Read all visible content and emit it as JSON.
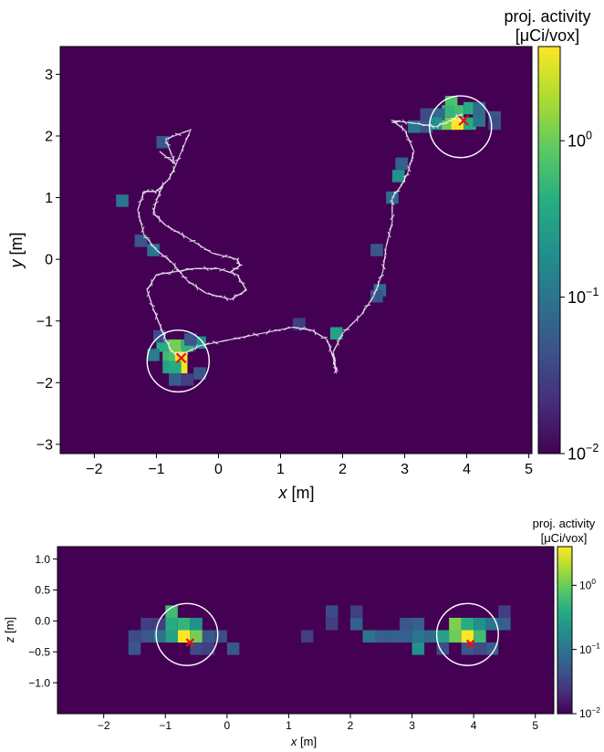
{
  "chart_data": [
    {
      "type": "heatmap",
      "name": "top-xy",
      "xlabel_var": "x",
      "ylabel_var": "y",
      "unit": "[m]",
      "xlim": [
        -2.55,
        5.05
      ],
      "ylim": [
        -3.15,
        3.45
      ],
      "xticks": [
        -2,
        -1,
        0,
        1,
        2,
        3,
        4,
        5
      ],
      "yticks": [
        -3,
        -2,
        -1,
        0,
        1,
        2,
        3
      ],
      "colorbar_label_line1": "proj. activity",
      "colorbar_label_line2": "[μCi/vox]",
      "colorbar_scale": "log",
      "colorbar_range": [
        0.01,
        4
      ],
      "colorbar_ticks": [
        {
          "label": "10",
          "exp": "−2",
          "value": 0.01
        },
        {
          "label": "10",
          "exp": "−1",
          "value": 0.1
        },
        {
          "label": "10",
          "exp": "0",
          "value": 1
        }
      ],
      "background_color": "#440154",
      "pixel_size": 0.2,
      "pixels": [
        [
          -0.8,
          -1.55,
          0.6
        ],
        [
          -0.7,
          -1.55,
          0.7
        ],
        [
          -0.6,
          -1.55,
          4.0
        ],
        [
          -0.6,
          -1.75,
          3.5
        ],
        [
          -0.8,
          -1.75,
          0.3
        ],
        [
          -0.7,
          -1.75,
          0.4
        ],
        [
          -0.9,
          -1.4,
          0.4
        ],
        [
          -0.7,
          -1.4,
          1.1
        ],
        [
          -0.5,
          -1.4,
          0.5
        ],
        [
          -0.3,
          -1.35,
          0.2
        ],
        [
          -0.45,
          -1.3,
          0.05
        ],
        [
          -1.05,
          -1.55,
          0.12
        ],
        [
          -0.95,
          -1.25,
          0.04
        ],
        [
          -0.3,
          -1.85,
          0.05
        ],
        [
          -0.7,
          -1.95,
          0.06
        ],
        [
          -0.5,
          -1.95,
          0.03
        ],
        [
          -1.55,
          0.95,
          0.1
        ],
        [
          -1.25,
          0.3,
          0.05
        ],
        [
          -1.05,
          0.15,
          0.1
        ],
        [
          -0.9,
          1.9,
          0.05
        ],
        [
          1.9,
          -1.2,
          0.3
        ],
        [
          1.3,
          -1.05,
          0.03
        ],
        [
          2.6,
          -0.5,
          0.08
        ],
        [
          2.55,
          -0.6,
          0.05
        ],
        [
          2.55,
          0.15,
          0.05
        ],
        [
          2.8,
          1.0,
          0.08
        ],
        [
          2.9,
          1.35,
          0.2
        ],
        [
          2.95,
          1.55,
          0.06
        ],
        [
          3.85,
          2.2,
          4.0
        ],
        [
          3.65,
          2.2,
          1.1
        ],
        [
          3.85,
          2.4,
          0.6
        ],
        [
          3.75,
          2.55,
          0.7
        ],
        [
          3.7,
          2.4,
          0.5
        ],
        [
          4.05,
          2.2,
          0.4
        ],
        [
          4.05,
          2.45,
          0.4
        ],
        [
          4.2,
          2.45,
          0.08
        ],
        [
          4.2,
          2.25,
          0.1
        ],
        [
          4.45,
          2.3,
          0.05
        ],
        [
          4.45,
          2.2,
          0.04
        ],
        [
          3.55,
          2.35,
          0.08
        ],
        [
          3.35,
          2.15,
          0.05
        ],
        [
          3.15,
          2.15,
          0.1
        ],
        [
          3.35,
          2.35,
          0.04
        ],
        [
          3.5,
          2.2,
          0.2
        ]
      ],
      "sources": [
        {
          "x": -0.6,
          "y": -1.6
        },
        {
          "x": 3.95,
          "y": 2.25
        }
      ],
      "circles": [
        {
          "x": -0.65,
          "y": -1.65,
          "r": 0.5
        },
        {
          "x": 3.9,
          "y": 2.15,
          "r": 0.5
        }
      ],
      "trajectory": [
        [
          -0.95,
          1.75
        ],
        [
          -0.7,
          1.55
        ],
        [
          -0.85,
          1.95
        ],
        [
          -0.45,
          2.1
        ],
        [
          -0.7,
          1.5
        ],
        [
          -0.8,
          1.3
        ],
        [
          -1.0,
          1.1
        ],
        [
          -1.2,
          1.1
        ],
        [
          -1.3,
          0.8
        ],
        [
          -1.2,
          0.4
        ],
        [
          -1.0,
          0.15
        ],
        [
          -0.75,
          -0.05
        ],
        [
          -0.5,
          -0.35
        ],
        [
          -0.2,
          -0.55
        ],
        [
          0.2,
          -0.65
        ],
        [
          0.45,
          -0.5
        ],
        [
          0.3,
          -0.25
        ],
        [
          0.0,
          -0.15
        ],
        [
          -0.4,
          -0.15
        ],
        [
          -0.7,
          -0.2
        ],
        [
          -1.0,
          -0.25
        ],
        [
          -1.15,
          -0.5
        ],
        [
          -1.05,
          -0.8
        ],
        [
          -0.95,
          -1.05
        ],
        [
          -0.85,
          -1.3
        ],
        [
          -0.75,
          -1.5
        ],
        [
          -0.6,
          -1.55
        ],
        [
          -0.3,
          -1.4
        ],
        [
          0.2,
          -1.3
        ],
        [
          0.7,
          -1.2
        ],
        [
          1.2,
          -1.1
        ],
        [
          1.5,
          -1.15
        ],
        [
          1.75,
          -1.3
        ],
        [
          1.85,
          -1.6
        ],
        [
          1.9,
          -1.85
        ],
        [
          1.85,
          -1.5
        ],
        [
          2.0,
          -1.2
        ],
        [
          2.3,
          -0.9
        ],
        [
          2.5,
          -0.6
        ],
        [
          2.65,
          -0.2
        ],
        [
          2.7,
          0.2
        ],
        [
          2.8,
          0.6
        ],
        [
          2.8,
          1.0
        ],
        [
          2.95,
          1.2
        ],
        [
          3.05,
          1.4
        ],
        [
          3.15,
          1.75
        ],
        [
          3.0,
          2.1
        ],
        [
          2.8,
          2.25
        ],
        [
          3.2,
          2.2
        ],
        [
          3.5,
          2.15
        ],
        [
          3.75,
          2.25
        ],
        [
          3.9,
          2.35
        ],
        [
          3.9,
          2.2
        ]
      ],
      "trajectory_branch": [
        [
          -0.9,
          1.2
        ],
        [
          -1.0,
          0.95
        ],
        [
          -1.05,
          0.75
        ],
        [
          -0.85,
          0.55
        ],
        [
          -0.5,
          0.35
        ],
        [
          -0.1,
          0.1
        ],
        [
          0.3,
          0.0
        ],
        [
          0.35,
          -0.1
        ],
        [
          0.2,
          -0.2
        ]
      ]
    },
    {
      "type": "heatmap",
      "name": "bottom-xz",
      "xlabel_var": "x",
      "ylabel_var": "z",
      "unit": "[m]",
      "xlim": [
        -2.75,
        5.3
      ],
      "ylim": [
        -1.5,
        1.2
      ],
      "xticks": [
        -2,
        -1,
        0,
        1,
        2,
        3,
        4,
        5
      ],
      "yticks": [
        -1.0,
        -0.5,
        0.0,
        0.5,
        1.0
      ],
      "ytick_labels": [
        "−1.0",
        "−0.5",
        "0.0",
        "0.5",
        "1.0"
      ],
      "colorbar_label_line1": "proj. activity",
      "colorbar_label_line2": "[μCi/vox]",
      "colorbar_scale": "log",
      "colorbar_range": [
        0.01,
        4
      ],
      "colorbar_ticks": [
        {
          "label": "10",
          "exp": "−2",
          "value": 0.01
        },
        {
          "label": "10",
          "exp": "−1",
          "value": 0.1
        },
        {
          "label": "10",
          "exp": "0",
          "value": 1
        }
      ],
      "background_color": "#440154",
      "pixel_size": 0.2,
      "pixels": [
        [
          -0.7,
          -0.25,
          4.0
        ],
        [
          -0.5,
          -0.25,
          1.1
        ],
        [
          -0.9,
          -0.25,
          0.3
        ],
        [
          -0.7,
          -0.05,
          0.5
        ],
        [
          -0.9,
          -0.05,
          0.4
        ],
        [
          -0.9,
          0.15,
          0.6
        ],
        [
          -0.5,
          -0.05,
          0.2
        ],
        [
          -1.1,
          -0.25,
          0.1
        ],
        [
          -1.3,
          -0.25,
          0.05
        ],
        [
          -1.5,
          -0.25,
          0.04
        ],
        [
          -1.3,
          -0.05,
          0.03
        ],
        [
          -1.5,
          -0.45,
          0.05
        ],
        [
          -1.1,
          -0.05,
          0.03
        ],
        [
          -0.3,
          -0.25,
          0.05
        ],
        [
          -0.3,
          -0.45,
          0.03
        ],
        [
          -0.1,
          -0.25,
          0.04
        ],
        [
          0.1,
          -0.45,
          0.05
        ],
        [
          -0.5,
          -0.45,
          0.04
        ],
        [
          1.3,
          -0.25,
          0.03
        ],
        [
          1.7,
          0.15,
          0.04
        ],
        [
          1.7,
          -0.05,
          0.03
        ],
        [
          2.1,
          -0.05,
          0.06
        ],
        [
          2.3,
          -0.25,
          0.1
        ],
        [
          2.5,
          -0.25,
          0.06
        ],
        [
          2.7,
          -0.25,
          0.06
        ],
        [
          2.9,
          -0.25,
          0.06
        ],
        [
          2.9,
          -0.05,
          0.05
        ],
        [
          3.1,
          -0.05,
          0.06
        ],
        [
          3.3,
          -0.25,
          0.08
        ],
        [
          3.1,
          -0.45,
          0.2
        ],
        [
          3.5,
          -0.25,
          0.3
        ],
        [
          3.7,
          -0.25,
          1.0
        ],
        [
          3.7,
          -0.05,
          1.2
        ],
        [
          3.9,
          -0.25,
          4.0
        ],
        [
          4.1,
          -0.25,
          0.6
        ],
        [
          4.1,
          -0.05,
          0.2
        ],
        [
          3.9,
          -0.05,
          0.4
        ],
        [
          4.3,
          -0.05,
          0.1
        ],
        [
          4.5,
          -0.05,
          0.06
        ],
        [
          4.5,
          0.15,
          0.03
        ],
        [
          4.3,
          -0.45,
          0.06
        ],
        [
          4.1,
          -0.45,
          0.04
        ],
        [
          3.9,
          -0.45,
          0.05
        ],
        [
          3.5,
          -0.45,
          0.04
        ],
        [
          2.1,
          0.15,
          0.03
        ],
        [
          3.1,
          -0.25,
          0.1
        ]
      ],
      "sources": [
        {
          "x": -0.6,
          "y": -0.35
        },
        {
          "x": 3.95,
          "y": -0.37
        }
      ],
      "circles": [
        {
          "x": -0.65,
          "y": -0.22,
          "r": 0.5
        },
        {
          "x": 3.9,
          "y": -0.22,
          "r": 0.5
        }
      ]
    }
  ]
}
